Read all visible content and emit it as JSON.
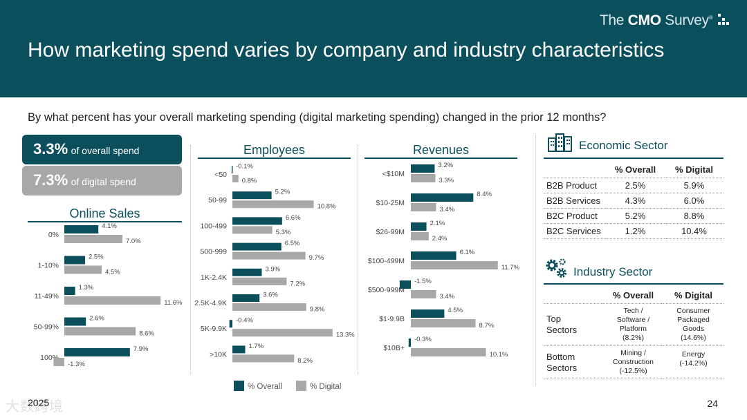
{
  "header": {
    "title": "How marketing spend varies by company and industry characteristics",
    "logo_prefix": "The ",
    "logo_bold": "CMO",
    "logo_suffix": " Survey",
    "logo_mark": "®"
  },
  "question": "By what percent has your overall marketing spending (digital marketing spending) changed in the prior 12 months?",
  "kpis": [
    {
      "value": "3.3%",
      "label": "of overall spend"
    },
    {
      "value": "7.3%",
      "label": "of digital spend"
    }
  ],
  "colors": {
    "overall": "#0b4f5c",
    "digital": "#a8a8a8",
    "header": "#0b4f5c"
  },
  "chart_data": [
    {
      "type": "bar",
      "orientation": "horizontal",
      "title": "Online Sales",
      "categories": [
        "0%",
        "1-10%",
        "11-49%",
        "50-99%",
        "100%"
      ],
      "series": [
        {
          "name": "% Overall",
          "values": [
            4.1,
            2.5,
            1.3,
            2.6,
            7.9
          ]
        },
        {
          "name": "% Digital",
          "values": [
            7.0,
            4.5,
            11.6,
            8.6,
            -1.3
          ]
        }
      ],
      "labels": {
        "% Overall": [
          "4.1%",
          "2.5%",
          "1.3%",
          "2.6%",
          "7.9%"
        ],
        "% Digital": [
          "7.0%",
          "4.5%",
          "11.6%",
          "8.6%",
          "-1.3%"
        ]
      },
      "xlim": [
        -1.5,
        12
      ]
    },
    {
      "type": "bar",
      "orientation": "horizontal",
      "title": "Employees",
      "categories": [
        "<50",
        "50-99",
        "100-499",
        "500-999",
        "1K-2.4K",
        "2.5K-4.9K",
        "5K-9.9K",
        ">10K"
      ],
      "series": [
        {
          "name": "% Overall",
          "values": [
            -0.1,
            5.2,
            6.6,
            6.5,
            3.9,
            3.6,
            -0.4,
            1.7
          ]
        },
        {
          "name": "% Digital",
          "values": [
            0.8,
            10.8,
            5.3,
            9.7,
            7.2,
            9.8,
            13.3,
            8.2
          ]
        }
      ],
      "labels": {
        "% Overall": [
          "-0.1%",
          "5.2%",
          "6.6%",
          "6.5%",
          "3.9%",
          "3.6%",
          "-0.4%",
          "1.7%"
        ],
        "% Digital": [
          "0.8%",
          "10.8%",
          "5.3%",
          "9.7%",
          "7.2%",
          "9.8%",
          "13.3%",
          "8.2%"
        ]
      },
      "xlim": [
        -0.5,
        13.5
      ]
    },
    {
      "type": "bar",
      "orientation": "horizontal",
      "title": "Revenues",
      "categories": [
        "<$10M",
        "$10-25M",
        "$26-99M",
        "$100-499M",
        "$500-999M",
        "$1-9.9B",
        "$10B+"
      ],
      "series": [
        {
          "name": "% Overall",
          "values": [
            3.2,
            8.4,
            2.1,
            6.1,
            -1.5,
            4.5,
            -0.3
          ]
        },
        {
          "name": "% Digital",
          "values": [
            3.3,
            3.4,
            2.4,
            11.7,
            3.4,
            8.7,
            10.1
          ]
        }
      ],
      "labels": {
        "% Overall": [
          "3.2%",
          "8.4%",
          "2.1%",
          "6.1%",
          "-1.5%",
          "4.5%",
          "-0.3%"
        ],
        "% Digital": [
          "3.3%",
          "3.4%",
          "2.4%",
          "11.7%",
          "3.4%",
          "8.7%",
          "10.1%"
        ]
      },
      "xlim": [
        -1.5,
        12
      ]
    }
  ],
  "legend": {
    "overall": "% Overall",
    "digital": "% Digital"
  },
  "economic_sector": {
    "title": "Economic Sector",
    "col_overall": "% Overall",
    "col_digital": "% Digital",
    "rows": [
      {
        "label": "B2B Product",
        "overall": "2.5%",
        "digital": "5.9%"
      },
      {
        "label": "B2B Services",
        "overall": "4.3%",
        "digital": "6.0%"
      },
      {
        "label": "B2C Product",
        "overall": "5.2%",
        "digital": "8.8%"
      },
      {
        "label": "B2C Services",
        "overall": "1.2%",
        "digital": "10.4%"
      }
    ]
  },
  "industry_sector": {
    "title": "Industry Sector",
    "col_overall": "% Overall",
    "col_digital": "% Digital",
    "rows": [
      {
        "label_1": "Top",
        "label_2": "Sectors",
        "overall": [
          "Tech /",
          "Software /",
          "Platform",
          "(8.2%)"
        ],
        "digital": [
          "Consumer",
          "Packaged",
          "Goods",
          "(14.6%)"
        ]
      },
      {
        "label_1": "Bottom",
        "label_2": "Sectors",
        "overall": [
          "Mining /",
          "Construction",
          "(-12.5%)"
        ],
        "digital": [
          "Energy",
          "(-14.2%)"
        ]
      }
    ]
  },
  "footer": {
    "year": "2025",
    "page": "24",
    "watermark": "大数跨境"
  }
}
